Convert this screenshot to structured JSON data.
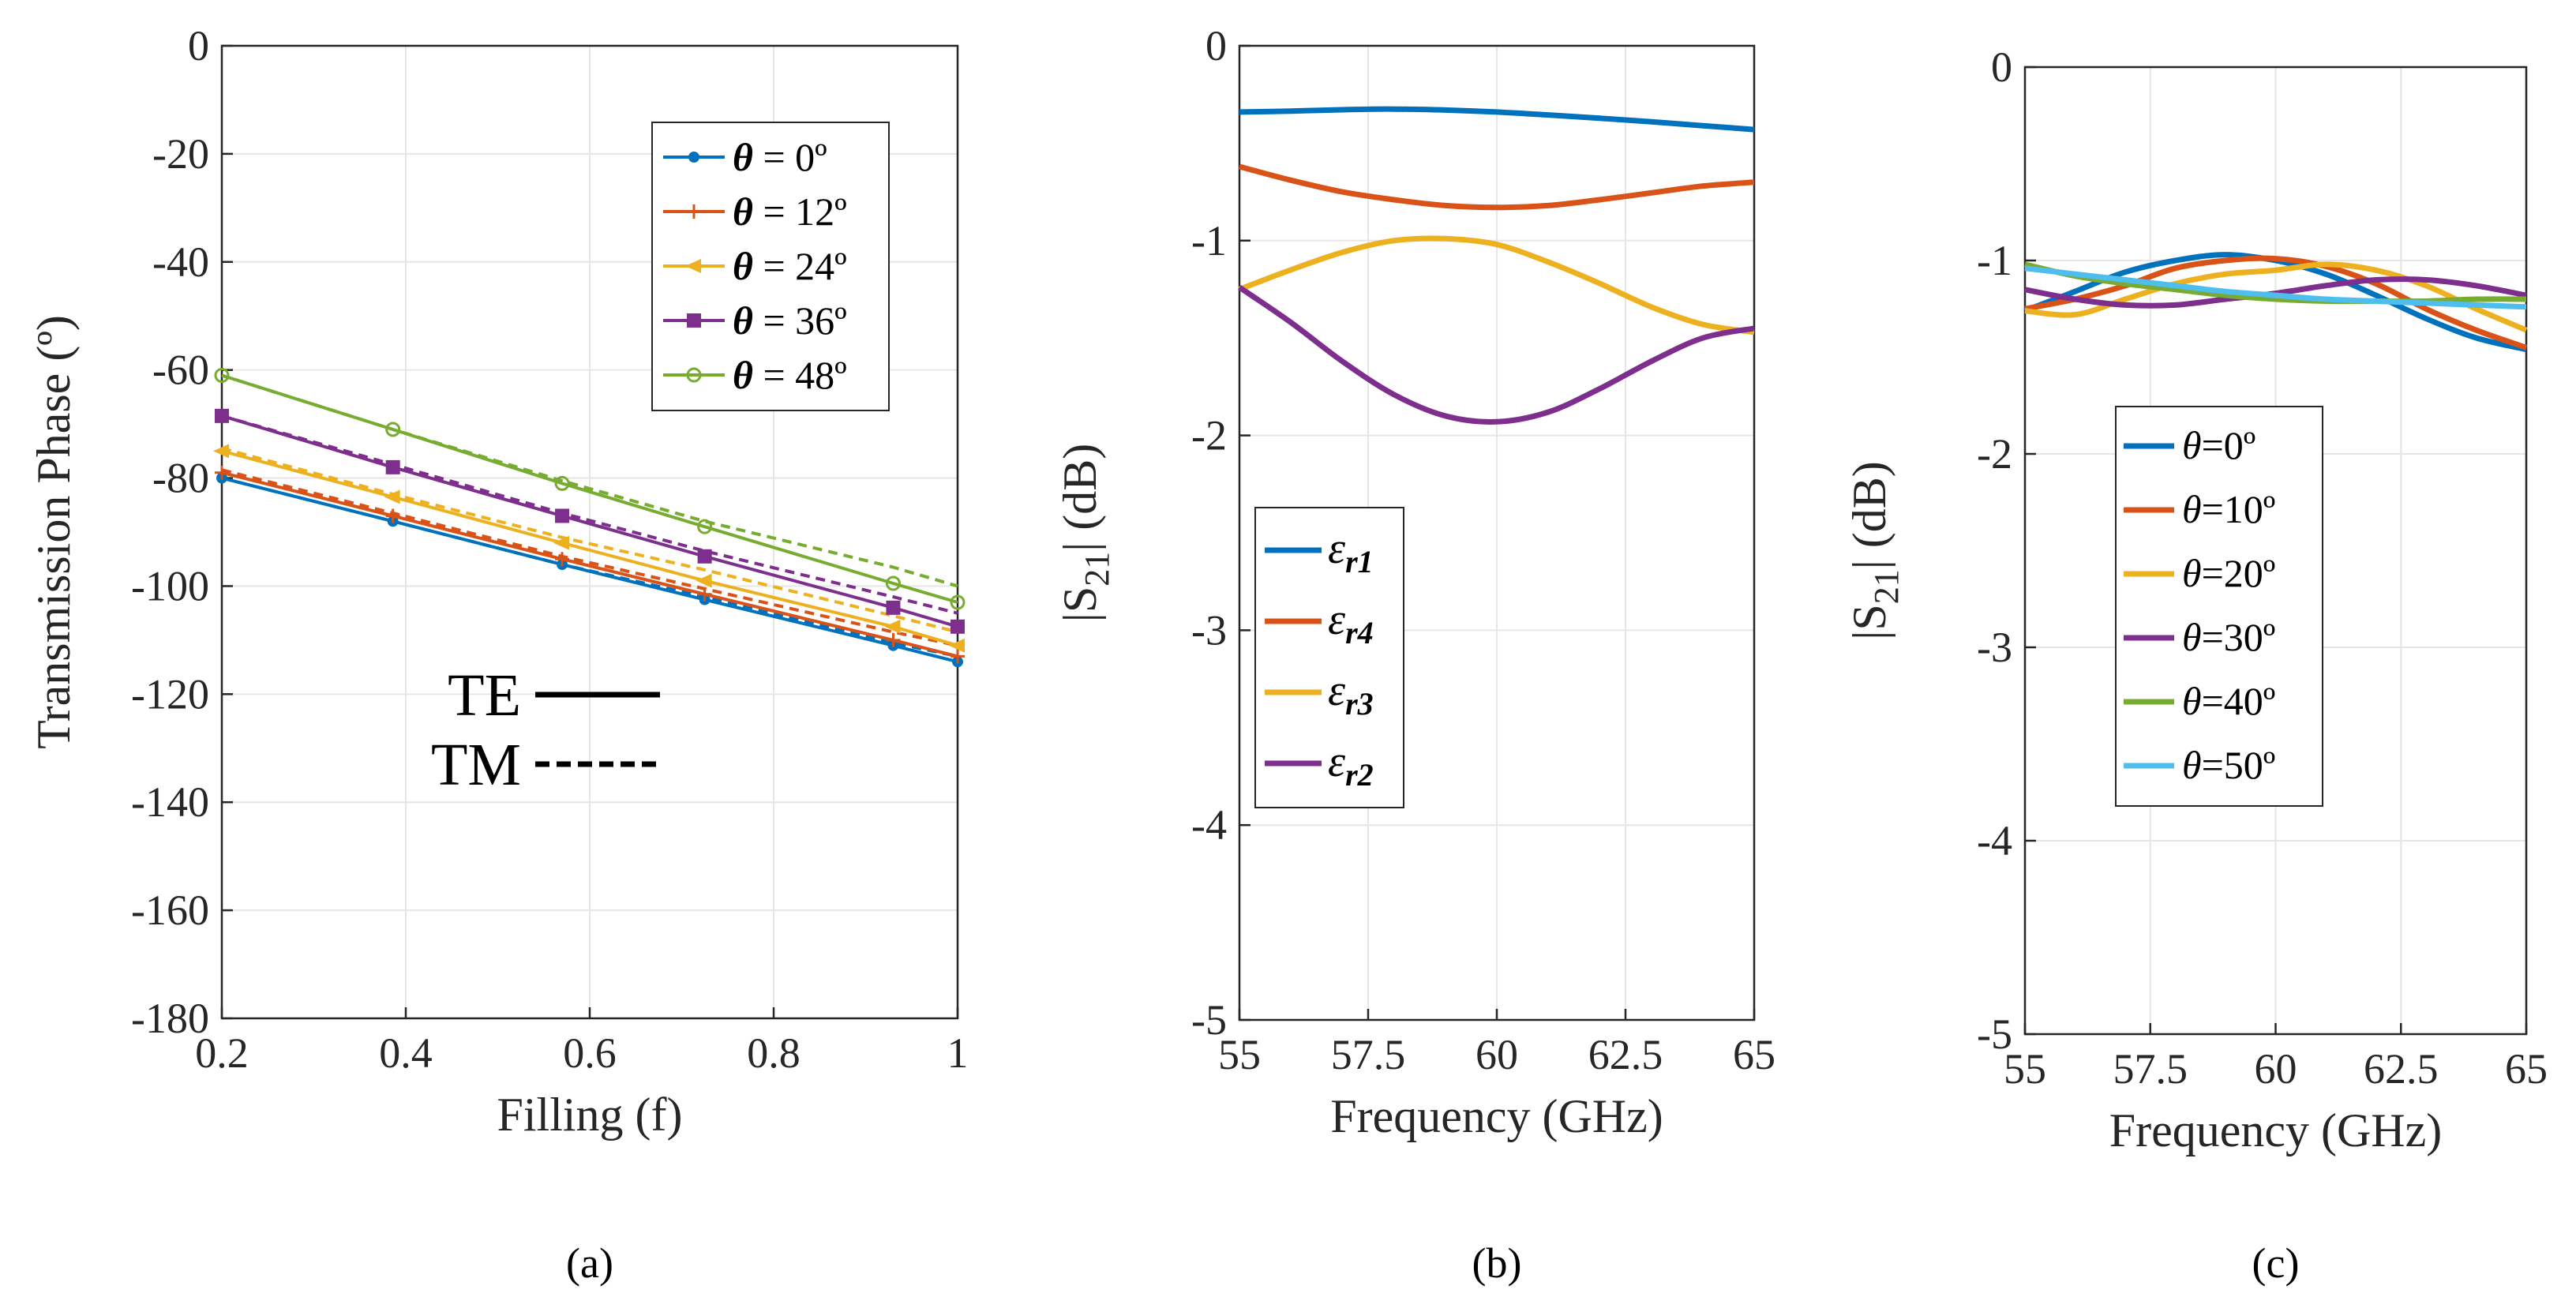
{
  "colors": {
    "c1": "#0072BD",
    "c2": "#D95319",
    "c3": "#EDB120",
    "c4": "#7E2F8E",
    "c5": "#77AC30",
    "c6": "#4DBEEE"
  },
  "chart_data": [
    {
      "type": "line",
      "panel": "a",
      "caption": "(a)",
      "xlabel": "Filling (f)",
      "ylabel": "Transmission Phase (º)",
      "xlim": [
        0.2,
        1.0
      ],
      "ylim": [
        -180,
        0
      ],
      "xticks": [
        "0.2",
        "0.4",
        "0.6",
        "0.8",
        "1"
      ],
      "yticks": [
        "0",
        "-20",
        "-40",
        "-60",
        "-80",
        "-100",
        "-120",
        "-140",
        "-160",
        "-180"
      ],
      "grid": true,
      "legend_position": "top-right",
      "x": [
        0.2,
        0.386,
        0.57,
        0.725,
        0.93,
        1.0
      ],
      "series": [
        {
          "name": "θ = 0º",
          "label_sym": "θ",
          "label_rest": " = 0º",
          "color": "c1",
          "marker": "dot",
          "te": [
            -80,
            -88,
            -96,
            -102.5,
            -111,
            -114
          ],
          "tm": [
            -80,
            -88,
            -96,
            -102,
            -110.5,
            -113
          ]
        },
        {
          "name": "θ = 12º",
          "label_sym": "θ",
          "label_rest": " = 12º",
          "color": "c2",
          "marker": "plus",
          "te": [
            -79,
            -87,
            -95,
            -101.5,
            -110,
            -113
          ],
          "tm": [
            -78.5,
            -86.5,
            -94.5,
            -100.5,
            -108.5,
            -111
          ]
        },
        {
          "name": "θ = 24º",
          "label_sym": "θ",
          "label_rest": " = 24º",
          "color": "c3",
          "marker": "triangle-left",
          "te": [
            -75,
            -83.5,
            -92,
            -99,
            -107.5,
            -111
          ],
          "tm": [
            -74.5,
            -83,
            -91,
            -97,
            -105.5,
            -108.5
          ]
        },
        {
          "name": "θ = 36º",
          "label_sym": "θ",
          "label_rest": " = 36º",
          "color": "c4",
          "marker": "square",
          "te": [
            -68.5,
            -78,
            -87,
            -94.5,
            -104,
            -107.5
          ],
          "tm": [
            -68.5,
            -77.5,
            -86.5,
            -93.5,
            -102,
            -105
          ]
        },
        {
          "name": "θ = 48º",
          "label_sym": "θ",
          "label_rest": " = 48º",
          "color": "c5",
          "marker": "circle",
          "te": [
            -61,
            -71,
            -81,
            -89,
            -99.5,
            -103
          ],
          "tm": [
            -61,
            -71,
            -80.5,
            -88,
            -96.5,
            -100
          ]
        }
      ],
      "style_legend": [
        {
          "label": "TE",
          "dash": "solid"
        },
        {
          "label": "TM",
          "dash": "dashed"
        }
      ]
    },
    {
      "type": "line",
      "panel": "b",
      "caption": "(b)",
      "xlabel": "Frequency (GHz)",
      "ylabel": "|S21| (dB)",
      "xlim": [
        55,
        65
      ],
      "ylim": [
        -5,
        0
      ],
      "xticks": [
        "55",
        "57.5",
        "60",
        "62.5",
        "65"
      ],
      "yticks": [
        "0",
        "-1",
        "-2",
        "-3",
        "-4",
        "-5"
      ],
      "grid": true,
      "legend_position": "center-left",
      "x": [
        55,
        56,
        57,
        58,
        59,
        60,
        61,
        62,
        63,
        64,
        65
      ],
      "series": [
        {
          "name": "εr1",
          "sym": "ε",
          "sub": "r1",
          "color": "c1",
          "values": [
            -0.34,
            -0.335,
            -0.328,
            -0.325,
            -0.33,
            -0.34,
            -0.355,
            -0.372,
            -0.39,
            -0.41,
            -0.43
          ]
        },
        {
          "name": "εr4",
          "sym": "ε",
          "sub": "r4",
          "color": "c2",
          "values": [
            -0.62,
            -0.69,
            -0.75,
            -0.79,
            -0.82,
            -0.83,
            -0.82,
            -0.79,
            -0.755,
            -0.72,
            -0.7
          ]
        },
        {
          "name": "εr3",
          "sym": "ε",
          "sub": "r3",
          "color": "c3",
          "values": [
            -1.25,
            -1.15,
            -1.06,
            -1.0,
            -0.99,
            -1.02,
            -1.11,
            -1.22,
            -1.34,
            -1.43,
            -1.47
          ]
        },
        {
          "name": "εr2",
          "sym": "ε",
          "sub": "r2",
          "color": "c4",
          "values": [
            -1.24,
            -1.42,
            -1.62,
            -1.79,
            -1.9,
            -1.93,
            -1.88,
            -1.76,
            -1.62,
            -1.5,
            -1.45
          ]
        }
      ]
    },
    {
      "type": "line",
      "panel": "c",
      "caption": "(c)",
      "xlabel": "Frequency (GHz)",
      "ylabel": "|S21| (dB)",
      "xlim": [
        55,
        65
      ],
      "ylim": [
        -5,
        0
      ],
      "xticks": [
        "55",
        "57.5",
        "60",
        "62.5",
        "65"
      ],
      "yticks": [
        "0",
        "-1",
        "-2",
        "-3",
        "-4",
        "-5"
      ],
      "grid": true,
      "legend_position": "center-left",
      "x": [
        55,
        56,
        57,
        58,
        59,
        60,
        61,
        62,
        63,
        64,
        65
      ],
      "series": [
        {
          "name": "θ=0º",
          "sym": "θ",
          "rest": "=0º",
          "color": "c1",
          "values": [
            -1.26,
            -1.16,
            -1.06,
            -1.0,
            -0.97,
            -1.0,
            -1.07,
            -1.18,
            -1.3,
            -1.4,
            -1.46
          ]
        },
        {
          "name": "θ=10º",
          "sym": "θ",
          "rest": "=10º",
          "color": "c2",
          "values": [
            -1.25,
            -1.2,
            -1.13,
            -1.04,
            -1.0,
            -0.99,
            -1.03,
            -1.12,
            -1.25,
            -1.36,
            -1.45
          ]
        },
        {
          "name": "θ=20º",
          "sym": "θ",
          "rest": "=20º",
          "color": "c3",
          "values": [
            -1.26,
            -1.28,
            -1.2,
            -1.12,
            -1.07,
            -1.05,
            -1.02,
            -1.05,
            -1.13,
            -1.25,
            -1.36
          ]
        },
        {
          "name": "θ=30º",
          "sym": "θ",
          "rest": "=30º",
          "color": "c4",
          "values": [
            -1.15,
            -1.2,
            -1.23,
            -1.23,
            -1.2,
            -1.17,
            -1.13,
            -1.1,
            -1.1,
            -1.13,
            -1.18
          ]
        },
        {
          "name": "θ=40º",
          "sym": "θ",
          "rest": "=40º",
          "color": "c5",
          "values": [
            -1.02,
            -1.08,
            -1.12,
            -1.15,
            -1.18,
            -1.2,
            -1.21,
            -1.21,
            -1.21,
            -1.2,
            -1.2
          ]
        },
        {
          "name": "θ=50º",
          "sym": "θ",
          "rest": "=50º",
          "color": "c6",
          "values": [
            -1.04,
            -1.07,
            -1.1,
            -1.13,
            -1.16,
            -1.18,
            -1.2,
            -1.21,
            -1.22,
            -1.23,
            -1.24
          ]
        }
      ]
    }
  ]
}
